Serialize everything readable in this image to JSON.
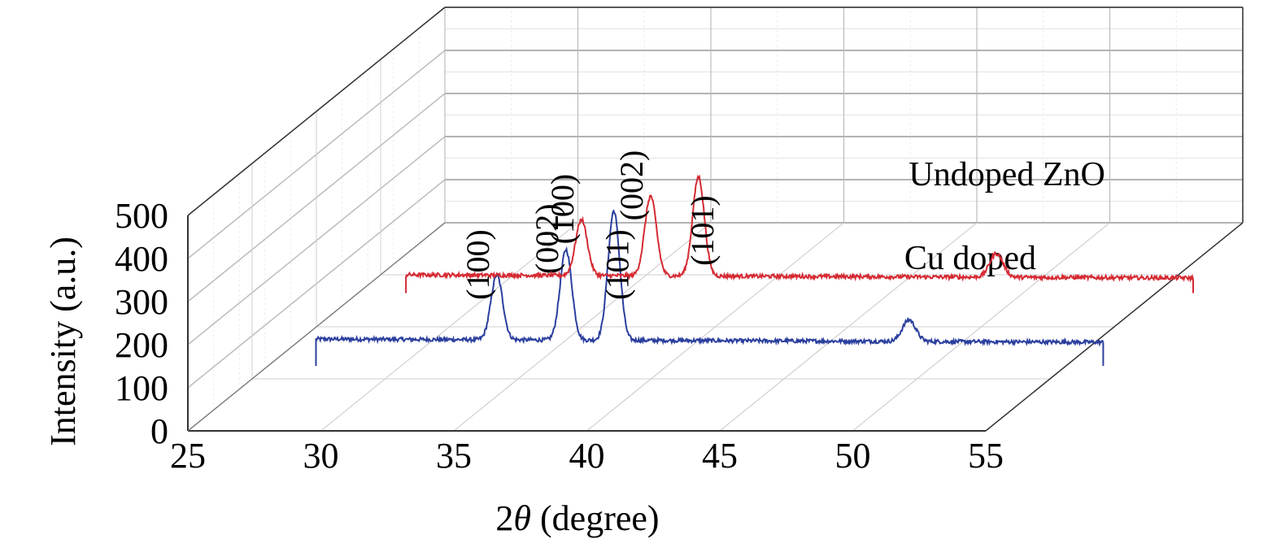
{
  "chart_data": {
    "type": "line",
    "style": "3d-waterfall",
    "xlabel": "2θ (degree)",
    "xlabel_prefix": "2",
    "xlabel_symbol": "θ",
    "xlabel_suffix": " (degree)",
    "ylabel": "Intensity (a.u.)",
    "xlim": [
      25,
      55
    ],
    "ylim": [
      0,
      500
    ],
    "x_ticks": [
      "25",
      "30",
      "35",
      "40",
      "45",
      "50",
      "55"
    ],
    "y_ticks": [
      "0",
      "100",
      "200",
      "300",
      "400",
      "500"
    ],
    "grid": true,
    "series": [
      {
        "name": "Cu doped",
        "label": "Cu doped",
        "color": "#2b3f9e",
        "x_range": [
          27.4,
          57.0
        ],
        "baseline": 85,
        "peaks": [
          {
            "x": 34.2,
            "height": 150,
            "width": 0.22,
            "hkl": "(100)"
          },
          {
            "x": 36.8,
            "height": 210,
            "width": 0.22,
            "hkl": "(002)"
          },
          {
            "x": 38.6,
            "height": 300,
            "width": 0.22,
            "hkl": "(101)"
          },
          {
            "x": 49.7,
            "height": 50,
            "width": 0.25
          }
        ]
      },
      {
        "name": "Undoped ZnO",
        "label": "Undoped ZnO",
        "color": "#d62a33",
        "x_range": [
          27.4,
          57.0
        ],
        "baseline": 65,
        "peaks": [
          {
            "x": 34.0,
            "height": 130,
            "width": 0.22,
            "hkl": "(100)"
          },
          {
            "x": 36.6,
            "height": 185,
            "width": 0.22,
            "hkl": "(002)"
          },
          {
            "x": 38.4,
            "height": 230,
            "width": 0.22,
            "hkl": "(101)"
          },
          {
            "x": 49.6,
            "height": 55,
            "width": 0.25
          }
        ]
      }
    ]
  }
}
